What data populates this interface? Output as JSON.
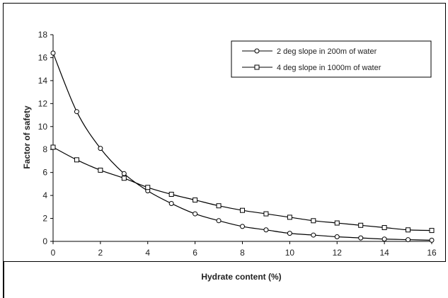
{
  "chart_data": {
    "type": "line",
    "title": "",
    "xlabel": "Hydrate content (%)",
    "ylabel": "Factor of safety",
    "xlim": [
      0,
      16
    ],
    "ylim": [
      0,
      18
    ],
    "x_ticks": [
      "0",
      "2",
      "4",
      "6",
      "8",
      "10",
      "12",
      "14",
      "16"
    ],
    "y_ticks": [
      "0",
      "2",
      "4",
      "6",
      "8",
      "10",
      "12",
      "14",
      "16",
      "18"
    ],
    "grid": false,
    "legend_position": "top-right",
    "x": [
      0,
      1,
      2,
      3,
      4,
      5,
      6,
      7,
      8,
      9,
      10,
      11,
      12,
      13,
      14,
      15,
      16
    ],
    "series": [
      {
        "name": "2 deg slope in 200m of water",
        "marker": "circle",
        "values": [
          16.4,
          11.3,
          8.1,
          5.9,
          4.4,
          3.3,
          2.4,
          1.8,
          1.3,
          1.0,
          0.7,
          0.55,
          0.4,
          0.3,
          0.2,
          0.15,
          0.1
        ]
      },
      {
        "name": "4 deg slope in 1000m of water",
        "marker": "square",
        "values": [
          8.2,
          7.1,
          6.2,
          5.5,
          4.7,
          4.1,
          3.6,
          3.1,
          2.7,
          2.4,
          2.1,
          1.8,
          1.6,
          1.4,
          1.2,
          1.0,
          0.95
        ]
      }
    ],
    "colors": {
      "line": "#000000",
      "marker_fill": "#ffffff"
    }
  }
}
